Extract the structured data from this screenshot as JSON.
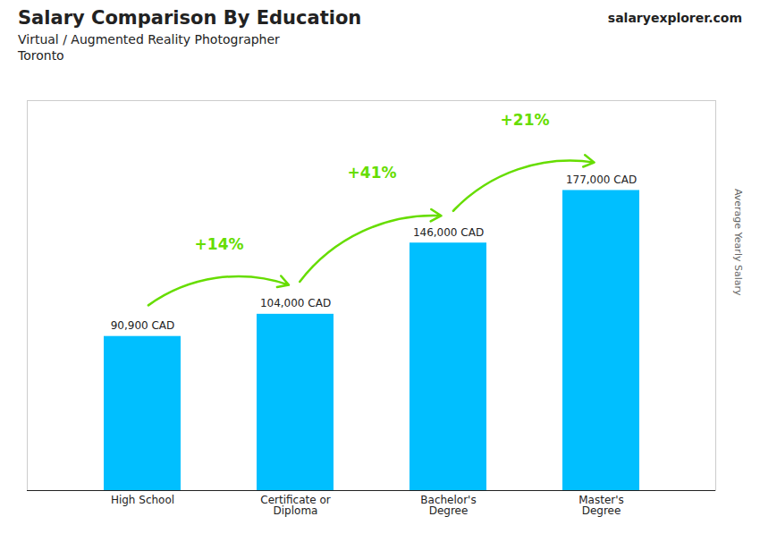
{
  "chart_data": {
    "type": "bar",
    "title": "Salary Comparison By Education",
    "subtitle": [
      "Virtual / Augmented Reality Photographer",
      "Toronto"
    ],
    "caption": "salaryexplorer.com",
    "ylabel": "Average Yearly Salary",
    "categories": [
      "High School",
      "Certificate or\nDiploma",
      "Bachelor's\nDegree",
      "Master's\nDegree"
    ],
    "values": [
      90900,
      104000,
      146000,
      177000
    ],
    "value_labels": [
      "90,900 CAD",
      "104,000 CAD",
      "146,000 CAD",
      "177,000 CAD"
    ],
    "data_labels": true,
    "color": "#00BFFF",
    "annotations": [
      {
        "text": "+14%",
        "color": "#66DD00"
      },
      {
        "text": "+41%",
        "color": "#66DD00"
      },
      {
        "text": "+21%",
        "color": "#66DD00"
      }
    ],
    "ylim": [
      0,
      230000
    ],
    "tick_labels": "x",
    "grid": false
  }
}
